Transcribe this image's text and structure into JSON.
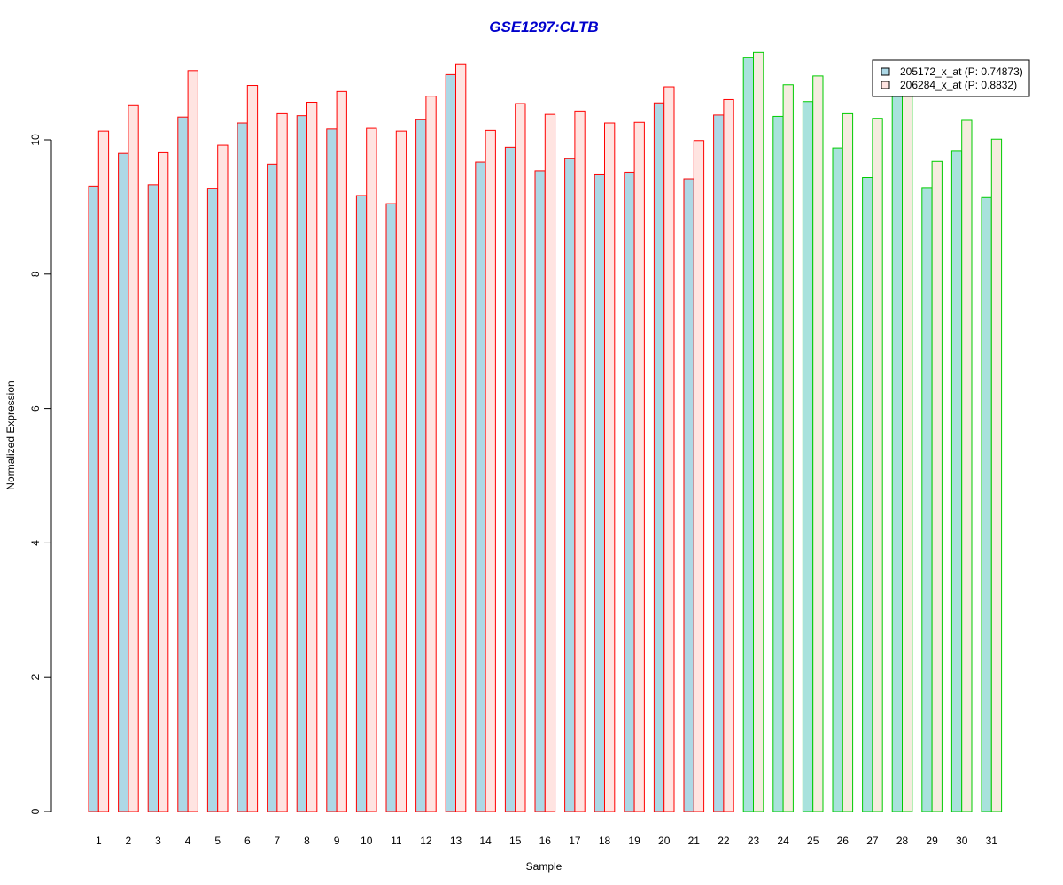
{
  "chart_data": {
    "type": "bar",
    "title": "GSE1297:CLTB",
    "xlabel": "Sample",
    "ylabel": "Normalized Expression",
    "ylim": [
      0,
      11.4
    ],
    "yticks": [
      "0",
      "2",
      "4",
      "6",
      "8",
      "10"
    ],
    "categories": [
      "1",
      "2",
      "3",
      "4",
      "5",
      "6",
      "7",
      "8",
      "9",
      "10",
      "11",
      "12",
      "13",
      "14",
      "15",
      "16",
      "17",
      "18",
      "19",
      "20",
      "21",
      "22",
      "23",
      "24",
      "25",
      "26",
      "27",
      "28",
      "29",
      "30",
      "31"
    ],
    "group_split_after": 22,
    "series": [
      {
        "name": "205172_x_at (P: 0.74873)",
        "values": [
          9.31,
          9.8,
          9.33,
          10.34,
          9.28,
          10.25,
          9.64,
          10.36,
          10.16,
          9.17,
          9.05,
          10.3,
          10.97,
          9.67,
          9.89,
          9.54,
          9.72,
          9.48,
          9.52,
          10.55,
          9.42,
          10.37,
          11.23,
          10.35,
          10.57,
          9.88,
          9.44,
          10.65,
          9.29,
          9.83,
          9.14
        ]
      },
      {
        "name": "206284_x_at (P: 0.8832)",
        "values": [
          10.13,
          10.51,
          9.81,
          11.03,
          9.92,
          10.81,
          10.39,
          10.56,
          10.72,
          10.17,
          10.13,
          10.65,
          11.13,
          10.14,
          10.54,
          10.38,
          10.43,
          10.25,
          10.26,
          10.79,
          9.99,
          10.6,
          11.3,
          10.82,
          10.95,
          10.39,
          10.32,
          10.7,
          9.68,
          10.29,
          10.01
        ]
      }
    ],
    "colors": {
      "title": "#0000cc",
      "series1_fill_group1": "#add8e6",
      "series2_fill_group1": "#ffe4e1",
      "series1_fill_group2": "#a8e2dc",
      "series2_fill_group2": "#f5ecdf",
      "border_group1": "#ff0000",
      "border_group2": "#00cc00"
    },
    "legend": "top-right",
    "grid": false
  }
}
